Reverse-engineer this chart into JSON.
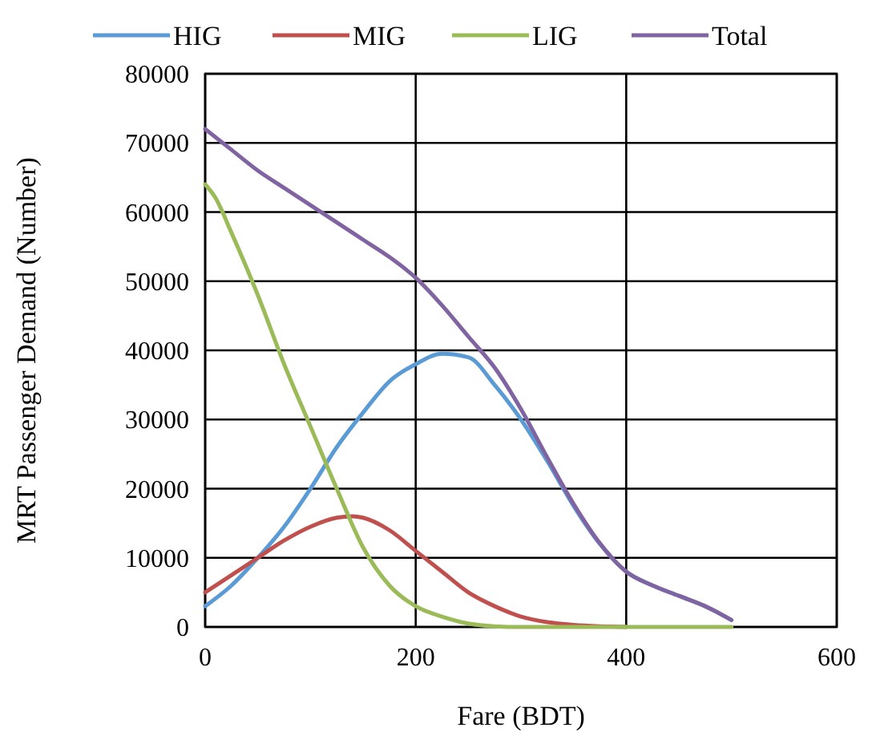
{
  "chart_data": {
    "type": "line",
    "xlabel": "Fare (BDT)",
    "ylabel": "MRT Passenger Demand (Number)",
    "xlim": [
      0,
      600
    ],
    "xticks": [
      0,
      200,
      400,
      600
    ],
    "ylim": [
      0,
      80000
    ],
    "yticks": [
      0,
      10000,
      20000,
      30000,
      40000,
      50000,
      60000,
      70000,
      80000
    ],
    "grid": true,
    "legend": "top",
    "marker": "none",
    "line_style": "solid",
    "series": [
      {
        "name": "HIG",
        "color": "#5b9bd5",
        "x": [
          0,
          25,
          50,
          75,
          100,
          125,
          150,
          175,
          200,
          225,
          250,
          275,
          300,
          325,
          350,
          375,
          400,
          425,
          450,
          475,
          500
        ],
        "values": [
          3000,
          6000,
          10000,
          14500,
          20000,
          26000,
          31000,
          35500,
          38000,
          39500,
          39000,
          35000,
          30000,
          24000,
          17500,
          12000,
          8000,
          6000,
          4500,
          3000,
          1000
        ]
      },
      {
        "name": "MIG",
        "color": "#c0504d",
        "x": [
          0,
          25,
          50,
          75,
          100,
          125,
          140,
          150,
          175,
          200,
          225,
          250,
          275,
          300,
          325,
          350,
          375,
          400
        ],
        "values": [
          5000,
          7500,
          10000,
          12500,
          14500,
          15800,
          16000,
          15800,
          14000,
          11000,
          8000,
          5000,
          3000,
          1500,
          700,
          300,
          100,
          0
        ]
      },
      {
        "name": "LIG",
        "color": "#9bbb59",
        "x": [
          0,
          10,
          25,
          50,
          75,
          100,
          125,
          150,
          175,
          200,
          225,
          250,
          275,
          300,
          400,
          500
        ],
        "values": [
          64000,
          62000,
          57000,
          48000,
          38000,
          29000,
          20000,
          11500,
          6000,
          3000,
          1500,
          500,
          100,
          0,
          0,
          0
        ]
      },
      {
        "name": "Total",
        "color": "#8064a2",
        "x": [
          0,
          25,
          50,
          75,
          100,
          125,
          150,
          175,
          200,
          225,
          250,
          275,
          300,
          325,
          350,
          375,
          400,
          425,
          450,
          475,
          500
        ],
        "values": [
          72000,
          69000,
          66000,
          63500,
          61000,
          58500,
          56000,
          53500,
          50500,
          46500,
          42000,
          37500,
          31500,
          24500,
          17800,
          12100,
          8000,
          6000,
          4500,
          3000,
          1000
        ]
      }
    ]
  }
}
